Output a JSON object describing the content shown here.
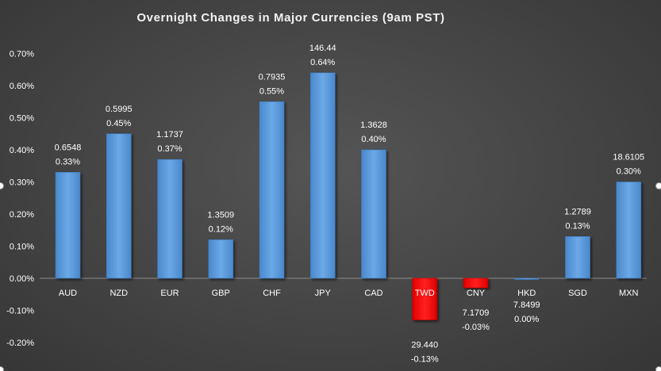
{
  "chart_data": {
    "type": "bar",
    "title": "Overnight Changes in Major Currencies (9am PST)",
    "categories": [
      "AUD",
      "NZD",
      "EUR",
      "GBP",
      "CHF",
      "JPY",
      "CAD",
      "TWD",
      "CNY",
      "HKD",
      "SGD",
      "MXN"
    ],
    "values": [
      0.33,
      0.45,
      0.37,
      0.12,
      0.55,
      0.64,
      0.4,
      -0.13,
      -0.03,
      0.0,
      0.13,
      0.3
    ],
    "rates": [
      "0.6548",
      "0.5995",
      "1.1737",
      "1.3509",
      "0.7935",
      "146.44",
      "1.3628",
      "29.440",
      "7.1709",
      "7.8499",
      "1.2789",
      "18.6105"
    ],
    "pct_labels": [
      "0.33%",
      "0.45%",
      "0.37%",
      "0.12%",
      "0.55%",
      "0.64%",
      "0.40%",
      "-0.13%",
      "-0.03%",
      "0.00%",
      "0.13%",
      "0.30%"
    ],
    "y_ticks": [
      "0.70%",
      "0.60%",
      "0.50%",
      "0.40%",
      "0.30%",
      "0.20%",
      "0.10%",
      "0.00%",
      "-0.10%",
      "-0.20%"
    ],
    "ylim": [
      -0.2,
      0.7
    ],
    "xlabel": "",
    "ylabel": "",
    "grid": false,
    "colors": {
      "positive": "#5b9bd5",
      "negative": "#ff0000",
      "text": "#ffffff",
      "axis": "#8c8c8c"
    }
  }
}
